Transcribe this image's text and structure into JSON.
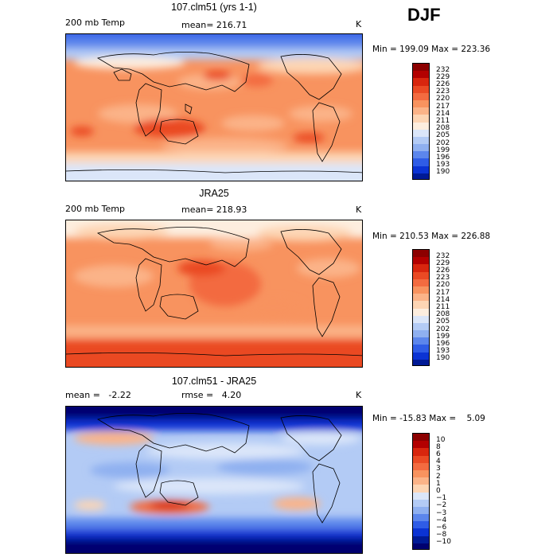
{
  "season": "DJF",
  "panels": [
    {
      "title": "107.clm51 (yrs 1-1)",
      "left_label": "200 mb Temp",
      "mid_label": "mean= 216.71",
      "unit": "K",
      "minmax": "Min = 199.09 Max = 223.36"
    },
    {
      "title": "JRA25",
      "left_label": "200 mb Temp",
      "mid_label": "mean= 218.93",
      "unit": "K",
      "minmax": "Min = 210.53 Max = 226.88"
    },
    {
      "title": "107.clm51 - JRA25",
      "left_label": "mean =   -2.22",
      "mid_label": "rmse =   4.20",
      "unit": "K",
      "minmax": "Min = -15.83 Max =    5.09"
    }
  ],
  "colorbars": {
    "temp": {
      "ticks": [
        "232",
        "229",
        "226",
        "223",
        "220",
        "217",
        "214",
        "211",
        "208",
        "205",
        "202",
        "199",
        "196",
        "193",
        "190"
      ],
      "colors": [
        "#8c0000",
        "#b30000",
        "#d8260e",
        "#ea4a24",
        "#f36b40",
        "#f8935f",
        "#fbb388",
        "#fdd5b4",
        "#fdeedf",
        "#dbe6f9",
        "#b3cbf5",
        "#8fb0f0",
        "#5c86ec",
        "#2f5ce6",
        "#0b33d4",
        "#001a96"
      ]
    },
    "diff": {
      "ticks": [
        "10",
        "8",
        "6",
        "4",
        "3",
        "2",
        "1",
        "0",
        "−1",
        "−2",
        "−3",
        "−4",
        "−6",
        "−8",
        "−10"
      ],
      "colors": [
        "#8c0000",
        "#b30000",
        "#d8260e",
        "#ea4a24",
        "#f36b40",
        "#f8935f",
        "#fbb388",
        "#fdd5b4",
        "#dbe6f9",
        "#b3cbf5",
        "#8fb0f0",
        "#5c86ec",
        "#2f5ce6",
        "#0b33d4",
        "#001a96",
        "#000070"
      ]
    }
  },
  "chart_data": [
    {
      "type": "heatmap",
      "title": "107.clm51 (yrs 1-1)",
      "variable": "200 mb Temp",
      "units": "K",
      "mean": 216.71,
      "min": 199.09,
      "max": 223.36,
      "levels": [
        190,
        193,
        196,
        199,
        202,
        205,
        208,
        211,
        214,
        217,
        220,
        223,
        226,
        229,
        232
      ]
    },
    {
      "type": "heatmap",
      "title": "JRA25",
      "variable": "200 mb Temp",
      "units": "K",
      "mean": 218.93,
      "min": 210.53,
      "max": 226.88,
      "levels": [
        190,
        193,
        196,
        199,
        202,
        205,
        208,
        211,
        214,
        217,
        220,
        223,
        226,
        229,
        232
      ]
    },
    {
      "type": "heatmap",
      "title": "107.clm51 - JRA25",
      "units": "K",
      "mean": -2.22,
      "rmse": 4.2,
      "min": -15.83,
      "max": 5.09,
      "levels": [
        -10,
        -8,
        -6,
        -4,
        -3,
        -2,
        -1,
        0,
        1,
        2,
        3,
        4,
        6,
        8,
        10
      ]
    }
  ]
}
